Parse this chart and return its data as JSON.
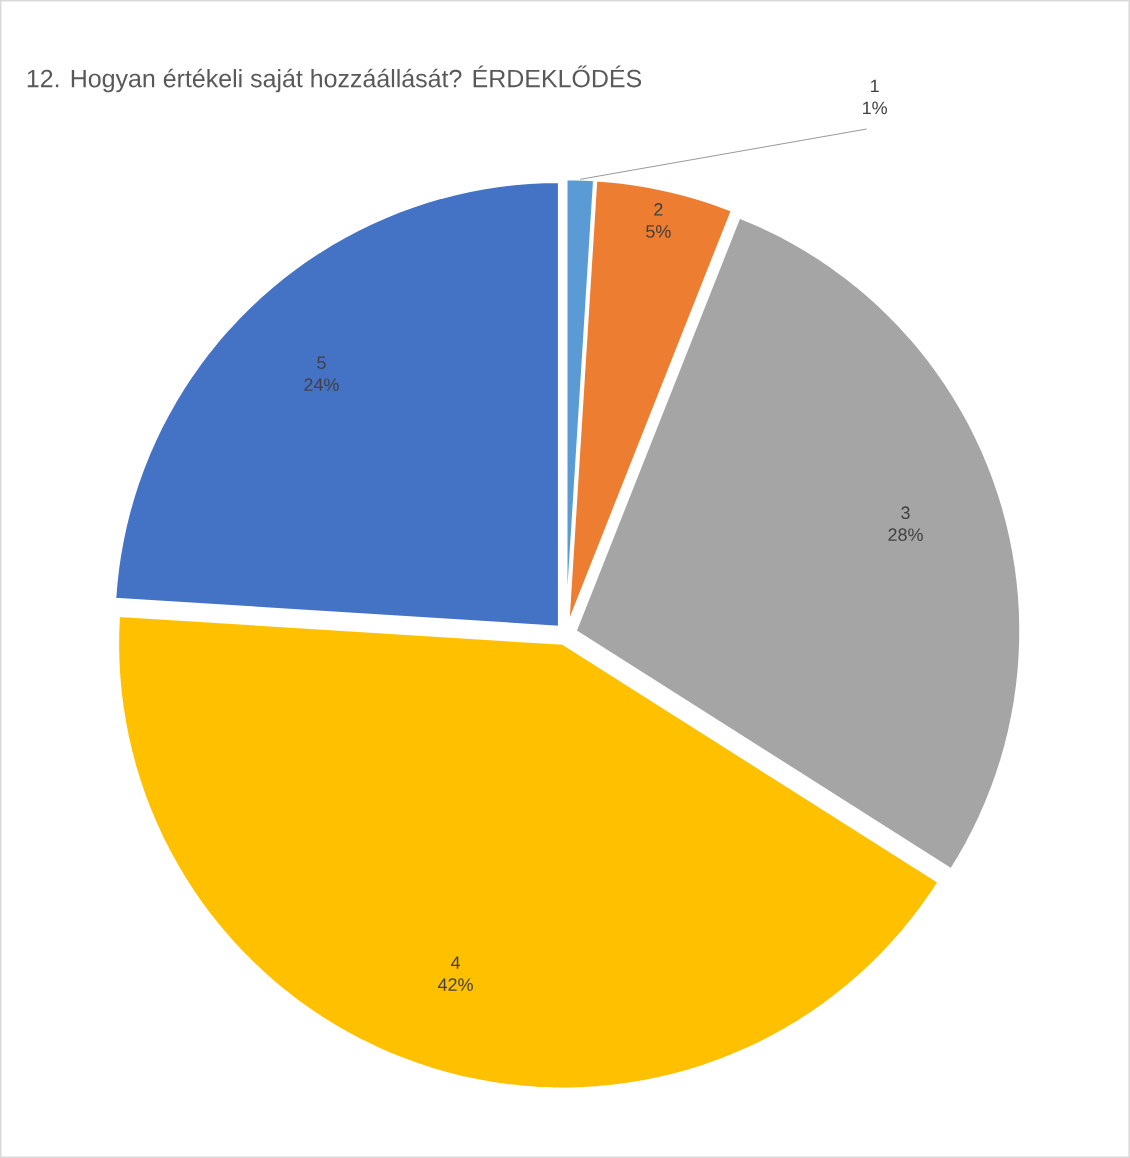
{
  "chart_data": {
    "type": "pie",
    "title": "12. Hogyan értékeli saját hozzáállását? ÉRDEKLŐDÉS",
    "categories": [
      "1",
      "2",
      "3",
      "4",
      "5"
    ],
    "values": [
      1,
      5,
      28,
      42,
      24
    ],
    "colors": [
      "#5b9bd5",
      "#ed7d31",
      "#a5a5a5",
      "#ffc000",
      "#4472c4"
    ],
    "value_labels": [
      "1%",
      "5%",
      "28%",
      "42%",
      "24%"
    ]
  }
}
